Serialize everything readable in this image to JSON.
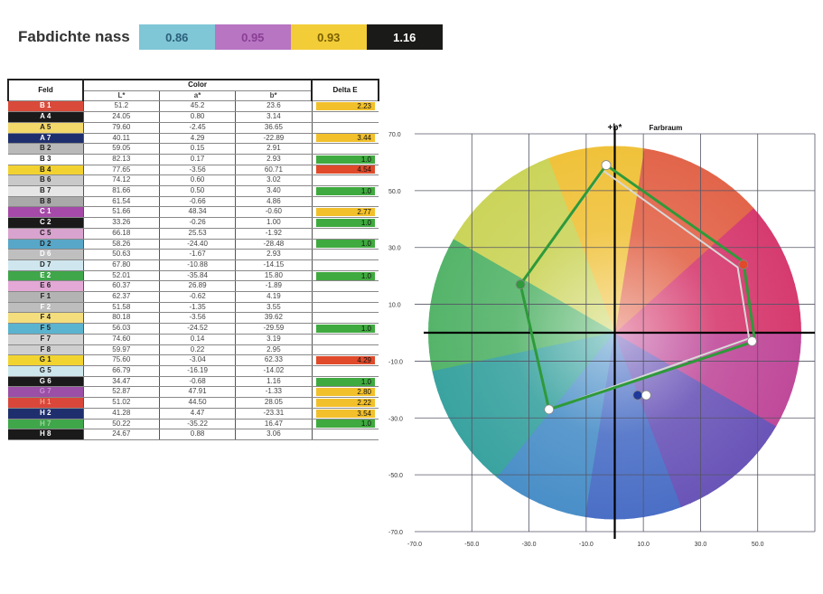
{
  "density": {
    "title": "Fabdichte nass",
    "values": [
      {
        "label": "0.86",
        "color": "cyan"
      },
      {
        "label": "0.95",
        "color": "magenta"
      },
      {
        "label": "0.93",
        "color": "yellow"
      },
      {
        "label": "1.16",
        "color": "black"
      }
    ]
  },
  "table": {
    "headers": {
      "field": "Feld",
      "color": "Color",
      "l": "L*",
      "a": "a*",
      "b": "b*",
      "de": "Delta E"
    },
    "rows": [
      {
        "field": "B 1",
        "fc": "#d94a3a",
        "tc": "#fff",
        "l": "51.2",
        "a": "45.2",
        "b": "23.6",
        "de": "2.23",
        "dc": "#f2c02b"
      },
      {
        "field": "A 4",
        "fc": "#1a1a1a",
        "tc": "#fff",
        "l": "24.05",
        "a": "0.80",
        "b": "3.14",
        "de": "",
        "dc": ""
      },
      {
        "field": "A 5",
        "fc": "#f3d86a",
        "tc": "#222",
        "l": "79.60",
        "a": "-2.45",
        "b": "36.65",
        "de": "",
        "dc": ""
      },
      {
        "field": "A 7",
        "fc": "#1f2f6e",
        "tc": "#fff",
        "l": "40.11",
        "a": "4.29",
        "b": "-22.89",
        "de": "3.44",
        "dc": "#f2c02b"
      },
      {
        "field": "B 2",
        "fc": "#b9b9b9",
        "tc": "#222",
        "l": "59.05",
        "a": "0.15",
        "b": "2.91",
        "de": "",
        "dc": ""
      },
      {
        "field": "B 3",
        "fc": "#ffffff",
        "tc": "#222",
        "l": "82.13",
        "a": "0.17",
        "b": "2.93",
        "de": "1.0",
        "dc": "#3faa3f"
      },
      {
        "field": "B 4",
        "fc": "#f2d230",
        "tc": "#222",
        "l": "77.65",
        "a": "-3.56",
        "b": "60.71",
        "de": "4.54",
        "dc": "#e04a2a"
      },
      {
        "field": "B 6",
        "fc": "#c9c9c9",
        "tc": "#222",
        "l": "74.12",
        "a": "0.60",
        "b": "3.02",
        "de": "",
        "dc": ""
      },
      {
        "field": "B 7",
        "fc": "#e6e6e6",
        "tc": "#222",
        "l": "81.66",
        "a": "0.50",
        "b": "3.40",
        "de": "1.0",
        "dc": "#3faa3f"
      },
      {
        "field": "B 8",
        "fc": "#a9a9a9",
        "tc": "#222",
        "l": "61.54",
        "a": "-0.66",
        "b": "4.86",
        "de": "",
        "dc": ""
      },
      {
        "field": "C 1",
        "fc": "#a54aa8",
        "tc": "#fff",
        "l": "51.66",
        "a": "48.34",
        "b": "-0.60",
        "de": "2.77",
        "dc": "#f2c02b"
      },
      {
        "field": "C 2",
        "fc": "#1a1a1a",
        "tc": "#fff",
        "l": "33.26",
        "a": "-0.26",
        "b": "1.00",
        "de": "1.0",
        "dc": "#3faa3f"
      },
      {
        "field": "C 5",
        "fc": "#d9a3cf",
        "tc": "#222",
        "l": "66.18",
        "a": "25.53",
        "b": "-1.92",
        "de": "",
        "dc": ""
      },
      {
        "field": "D 2",
        "fc": "#58a7c9",
        "tc": "#222",
        "l": "58.26",
        "a": "-24.40",
        "b": "-28.48",
        "de": "1.0",
        "dc": "#3faa3f"
      },
      {
        "field": "D 6",
        "fc": "#bfbfbf",
        "tc": "#fff",
        "l": "50.63",
        "a": "-1.67",
        "b": "2.93",
        "de": "",
        "dc": ""
      },
      {
        "field": "D 7",
        "fc": "#cfe6ee",
        "tc": "#222",
        "l": "67.80",
        "a": "-10.88",
        "b": "-14.15",
        "de": "",
        "dc": ""
      },
      {
        "field": "E 2",
        "fc": "#3fa64a",
        "tc": "#fff",
        "l": "52.01",
        "a": "-35.84",
        "b": "15.80",
        "de": "1.0",
        "dc": "#3faa3f"
      },
      {
        "field": "E 6",
        "fc": "#e3a8d6",
        "tc": "#222",
        "l": "60.37",
        "a": "26.89",
        "b": "-1.89",
        "de": "",
        "dc": ""
      },
      {
        "field": "F 1",
        "fc": "#b3b3b3",
        "tc": "#222",
        "l": "62.37",
        "a": "-0.62",
        "b": "4.19",
        "de": "",
        "dc": ""
      },
      {
        "field": "F 2",
        "fc": "#bdbdbd",
        "tc": "#fff",
        "l": "51.58",
        "a": "-1.35",
        "b": "3.55",
        "de": "",
        "dc": ""
      },
      {
        "field": "F 4",
        "fc": "#f4dd7c",
        "tc": "#222",
        "l": "80.18",
        "a": "-3.56",
        "b": "39.62",
        "de": "",
        "dc": ""
      },
      {
        "field": "F 5",
        "fc": "#5bb4cf",
        "tc": "#222",
        "l": "56.03",
        "a": "-24.52",
        "b": "-29.59",
        "de": "1.0",
        "dc": "#3faa3f"
      },
      {
        "field": "F 7",
        "fc": "#d3d3d3",
        "tc": "#222",
        "l": "74.60",
        "a": "0.14",
        "b": "3.19",
        "de": "",
        "dc": ""
      },
      {
        "field": "F 8",
        "fc": "#cfcfcf",
        "tc": "#222",
        "l": "59.97",
        "a": "0.22",
        "b": "2.95",
        "de": "",
        "dc": ""
      },
      {
        "field": "G 1",
        "fc": "#f2d430",
        "tc": "#222",
        "l": "75.60",
        "a": "-3.04",
        "b": "62.33",
        "de": "4.29",
        "dc": "#e04a2a"
      },
      {
        "field": "G 5",
        "fc": "#cde6ec",
        "tc": "#222",
        "l": "66.79",
        "a": "-16.19",
        "b": "-14.02",
        "de": "",
        "dc": ""
      },
      {
        "field": "G 6",
        "fc": "#1a1a1a",
        "tc": "#fff",
        "l": "34.47",
        "a": "-0.68",
        "b": "1.16",
        "de": "1.0",
        "dc": "#3faa3f"
      },
      {
        "field": "G 7",
        "fc": "#9b4fa6",
        "tc": "#c98fd3",
        "l": "52.87",
        "a": "47.91",
        "b": "-1.33",
        "de": "2.80",
        "dc": "#f2c02b"
      },
      {
        "field": "H 1",
        "fc": "#d9463a",
        "tc": "#f2a090",
        "l": "51.02",
        "a": "44.50",
        "b": "28.05",
        "de": "2.22",
        "dc": "#f2c02b"
      },
      {
        "field": "H 2",
        "fc": "#1f2f6e",
        "tc": "#fff",
        "l": "41.28",
        "a": "4.47",
        "b": "-23.31",
        "de": "3.54",
        "dc": "#f2c02b"
      },
      {
        "field": "H 7",
        "fc": "#3fa64a",
        "tc": "#9fd39f",
        "l": "50.22",
        "a": "-35.22",
        "b": "16.47",
        "de": "1.0",
        "dc": "#3faa3f"
      },
      {
        "field": "H 8",
        "fc": "#1a1a1a",
        "tc": "#fff",
        "l": "24.67",
        "a": "0.88",
        "b": "3.06",
        "de": "",
        "dc": ""
      }
    ]
  },
  "chart_data": {
    "type": "scatter",
    "title": "Farbraum",
    "ylabel": "+b*",
    "xlim": [
      -70,
      70
    ],
    "ylim": [
      -70,
      70
    ],
    "x_ticks": [
      "-70.0",
      "-50.0",
      "-30.0",
      "-10.0",
      "10.0",
      "30.0",
      "50.0"
    ],
    "y_ticks": [
      "70.0",
      "50.0",
      "30.0",
      "10.0",
      "-10.0",
      "-30.0",
      "-50.0",
      "-70.0"
    ],
    "grid": true,
    "series": [
      {
        "points": [
          [
            -3,
            59
          ],
          [
            45,
            25
          ],
          [
            49,
            -3
          ],
          [
            -23,
            -27
          ],
          [
            -33,
            17
          ],
          [
            -3,
            59
          ]
        ],
        "color": "#2e9a3a"
      },
      {
        "points": [
          [
            -4,
            57
          ],
          [
            43,
            23
          ],
          [
            47,
            -2
          ],
          [
            -23,
            -27
          ],
          [
            -33,
            17
          ],
          [
            -4,
            57
          ]
        ],
        "color": "#d8d8d8"
      }
    ],
    "markers": [
      {
        "x": -3,
        "y": 59,
        "color": "#ffffff"
      },
      {
        "x": 45,
        "y": 24,
        "color": "#e04a2a"
      },
      {
        "x": 48,
        "y": -3,
        "color": "#ffffff"
      },
      {
        "x": 8,
        "y": -22,
        "color": "#1f3a9a"
      },
      {
        "x": 11,
        "y": -22,
        "color": "#ffffff"
      },
      {
        "x": -23,
        "y": -27,
        "color": "#ffffff"
      },
      {
        "x": -33,
        "y": 17,
        "color": "#2e9a3a"
      }
    ]
  }
}
